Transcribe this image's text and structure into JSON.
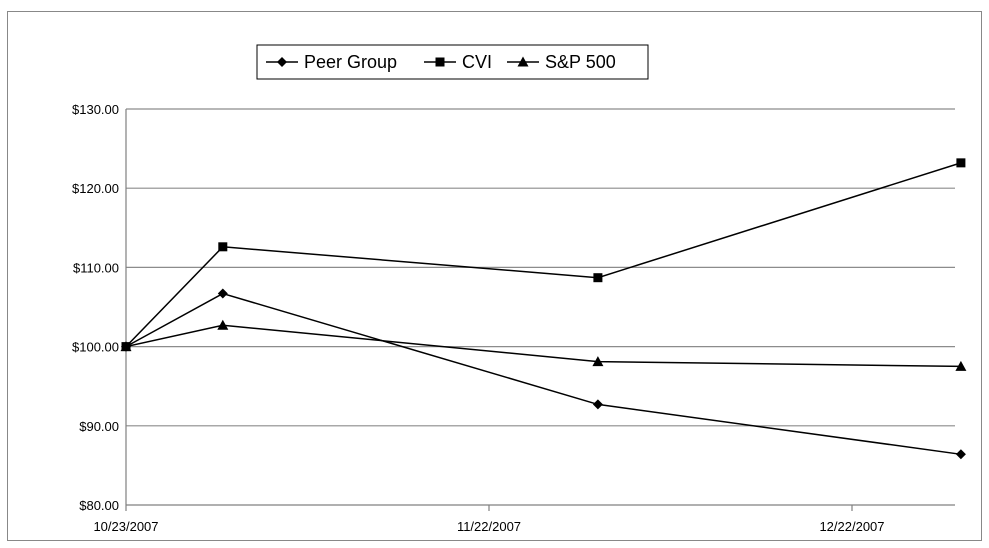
{
  "chart_data": {
    "type": "line",
    "x": [
      "10/23/2007",
      "10/31/2007",
      "12/1/2007",
      "12/31/2007"
    ],
    "xticks": [
      "10/23/2007",
      "11/22/2007",
      "12/22/2007"
    ],
    "yticks": [
      "$80.00",
      "$90.00",
      "$100.00",
      "$110.00",
      "$120.00",
      "$130.00"
    ],
    "ylim": [
      80,
      130
    ],
    "grid": true,
    "legend": "top",
    "series": [
      {
        "name": "Peer Group",
        "marker": "diamond",
        "values": [
          100.0,
          106.7,
          92.7,
          86.4
        ]
      },
      {
        "name": "CVI",
        "marker": "square",
        "values": [
          100.0,
          112.6,
          108.7,
          123.2
        ]
      },
      {
        "name": "S&P 500",
        "marker": "triangle",
        "values": [
          100.0,
          102.7,
          98.1,
          97.5
        ]
      }
    ],
    "colors": {
      "line": "#000000",
      "grid": "#8c8c8c"
    }
  }
}
